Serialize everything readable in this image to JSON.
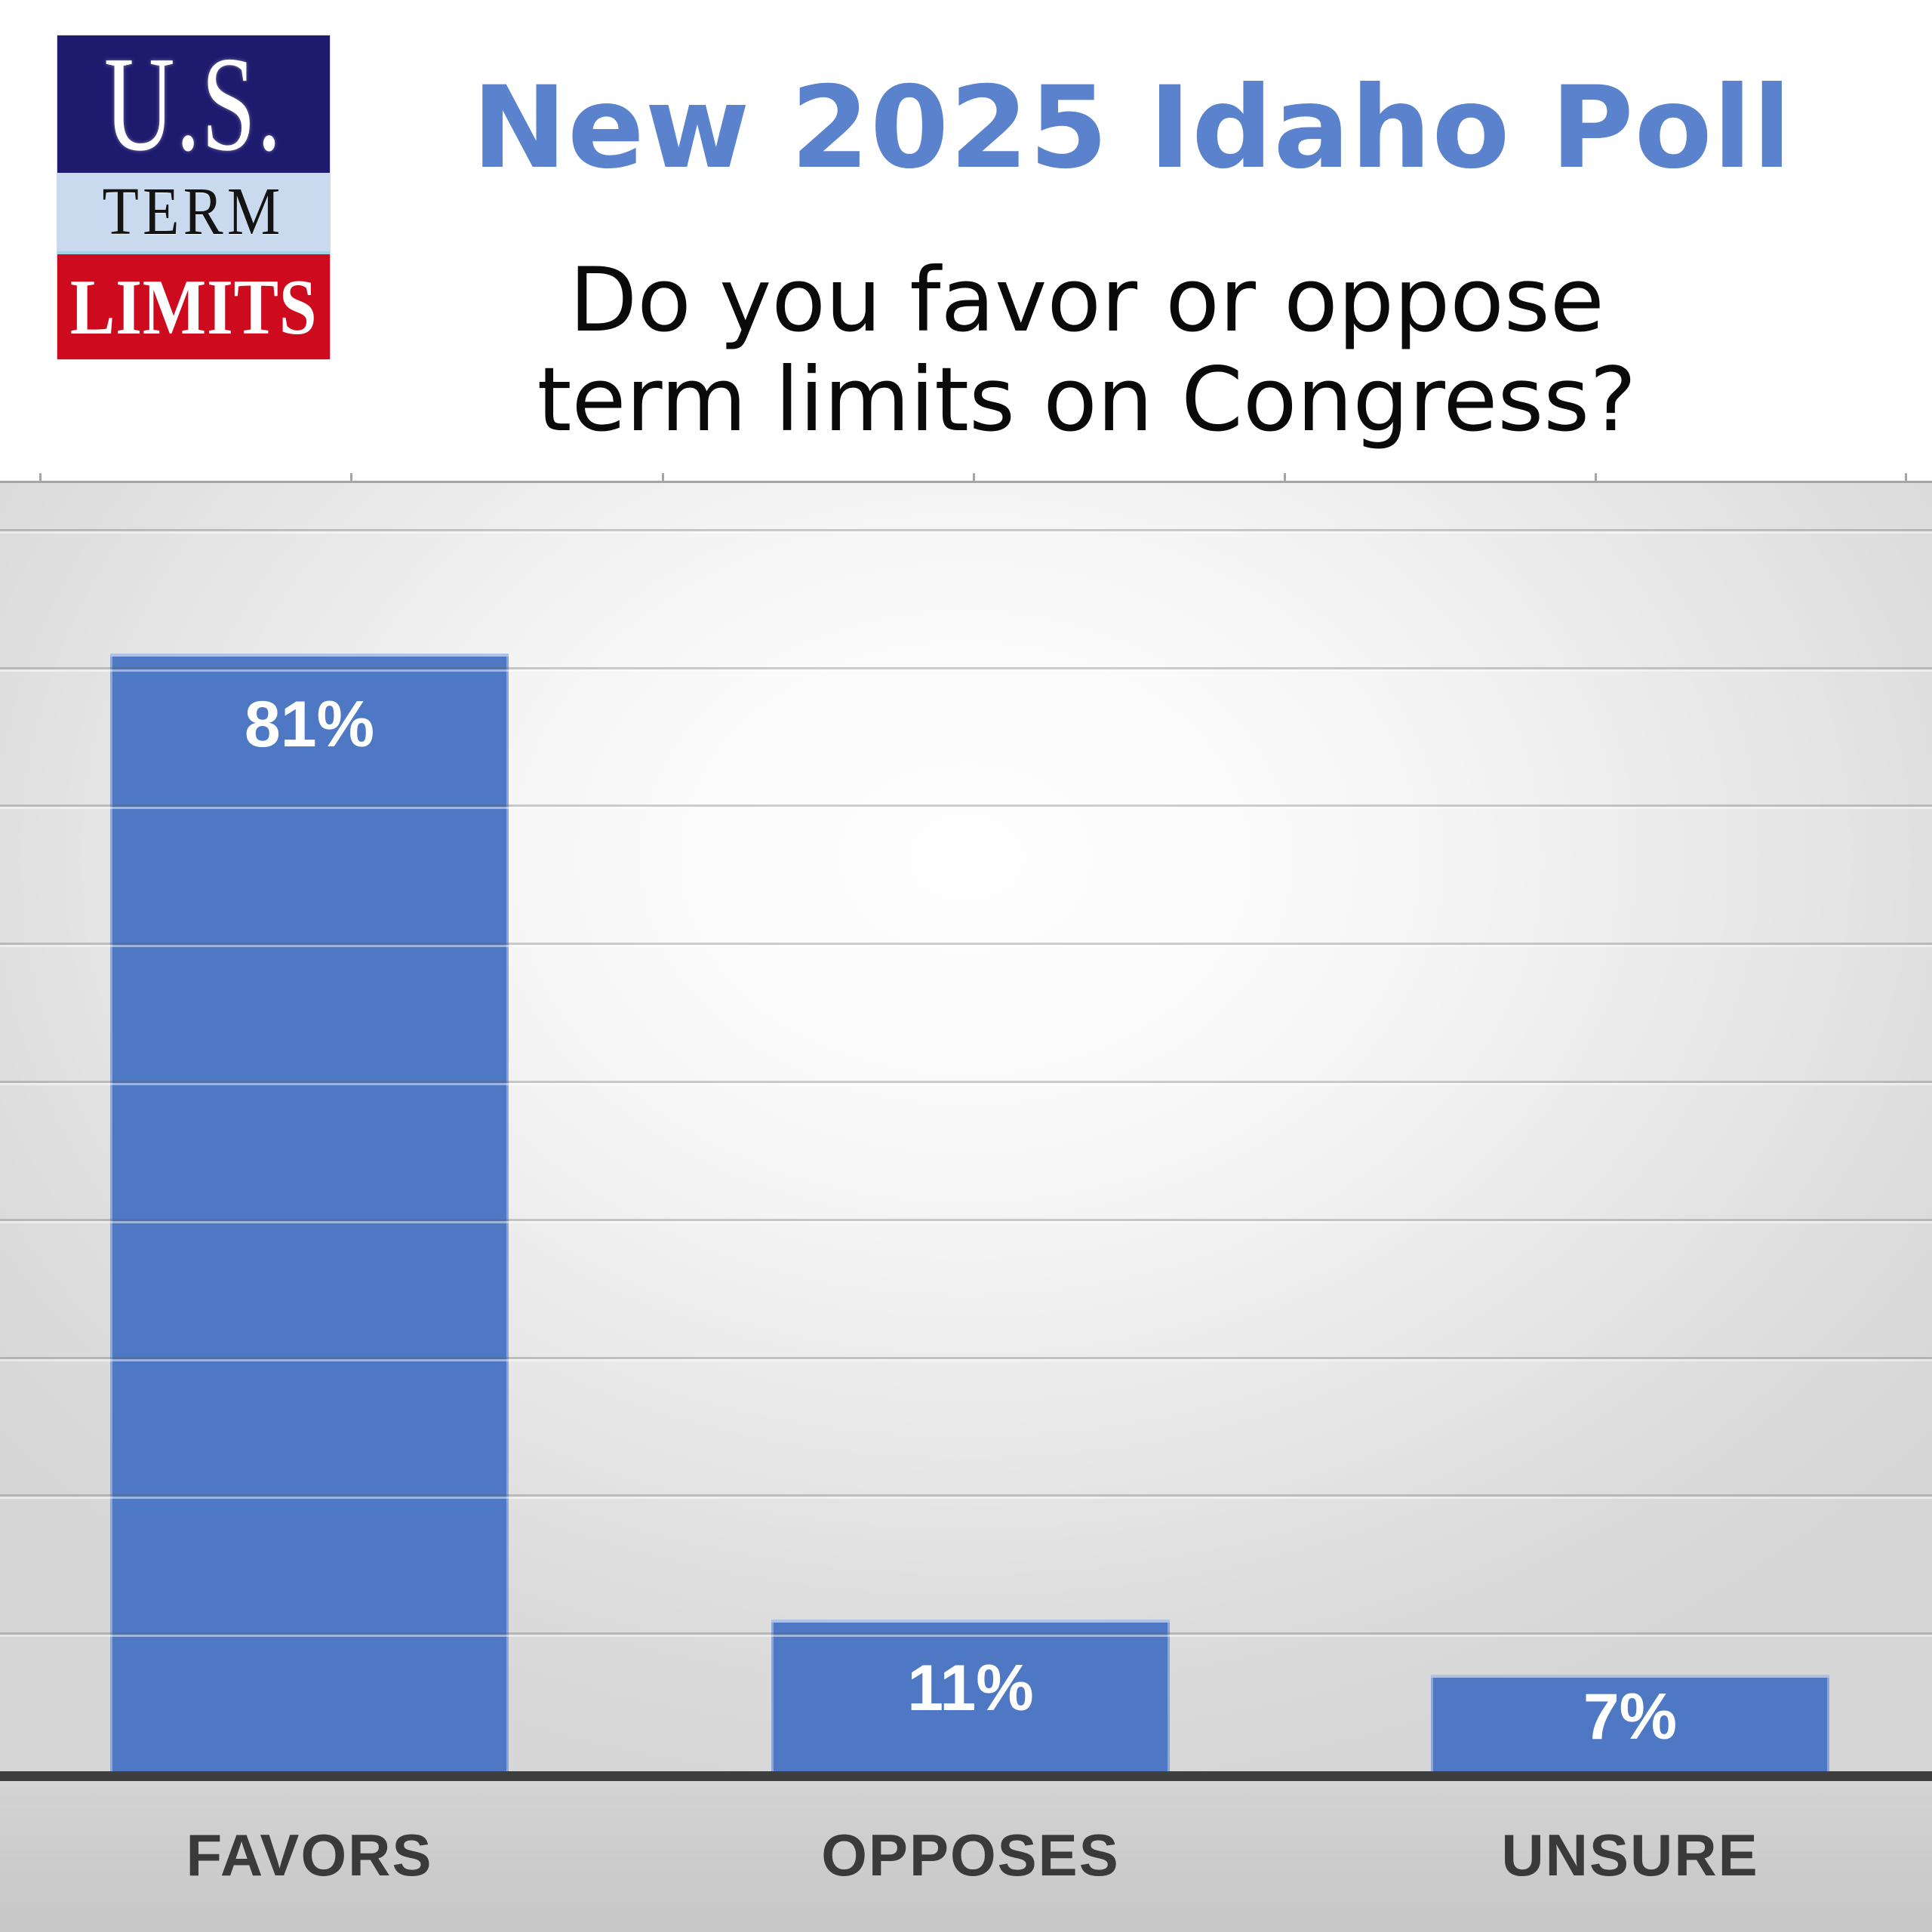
{
  "logo": {
    "line1": "U.S.",
    "line2": "TERM",
    "line3": "LIMITS",
    "navy_color": "#1e1a6d",
    "light_blue_color": "#c9d9ee",
    "red_color": "#ce0b1e"
  },
  "header": {
    "title": "New 2025 Idaho Poll",
    "title_color": "#5b82cd",
    "question_line1": "Do you favor or oppose",
    "question_line2": "term limits on Congress?"
  },
  "chart_data": {
    "type": "bar",
    "title": "New 2025 Idaho Poll",
    "subtitle": "Do you favor or oppose term limits on Congress?",
    "categories": [
      "FAVORS",
      "OPPOSES",
      "UNSURE"
    ],
    "values": [
      81,
      11,
      7
    ],
    "value_labels": [
      "81%",
      "11%",
      "7%"
    ],
    "xlabel": "",
    "ylabel": "",
    "ylim": [
      0,
      100
    ],
    "gridline_interval_pct": 10,
    "grid": true,
    "legend": "none",
    "bar_color": "#4e78c4",
    "value_label_color": "#ffffff",
    "category_label_color": "#3a3a3a",
    "axis_line_color": "#3e3e3e"
  }
}
